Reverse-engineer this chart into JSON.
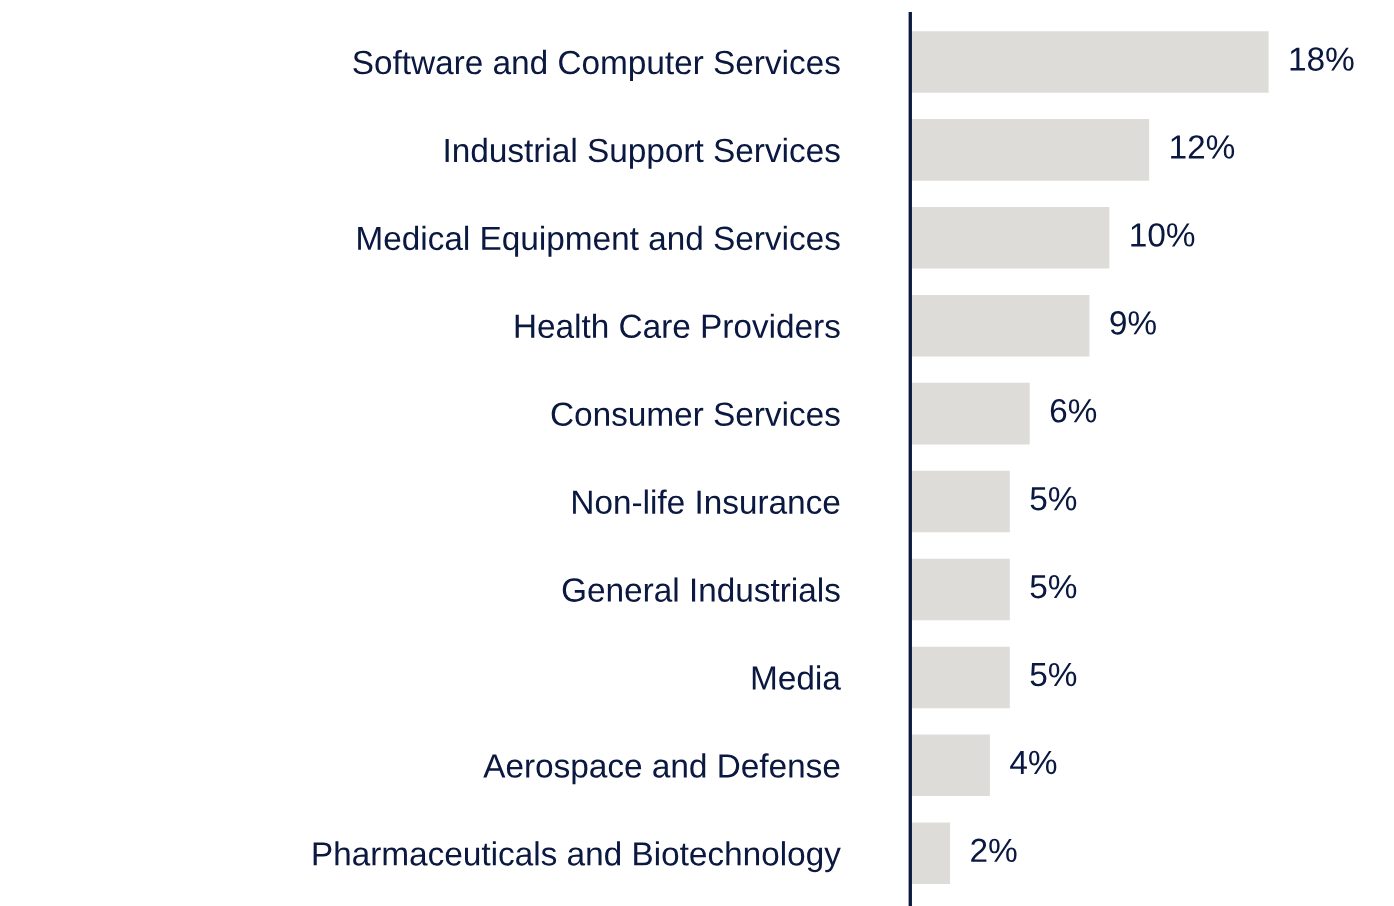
{
  "chart_data": {
    "type": "bar",
    "orientation": "horizontal",
    "categories": [
      "Software and Computer Services",
      "Industrial Support Services",
      "Medical Equipment and Services",
      "Health Care Providers",
      "Consumer Services",
      "Non-life Insurance",
      "General Industrials",
      "Media",
      "Aerospace and Defense",
      "Pharmaceuticals and Biotechnology"
    ],
    "values": [
      18,
      12,
      10,
      9,
      6,
      5,
      5,
      5,
      4,
      2
    ],
    "value_labels": [
      "18%",
      "12%",
      "10%",
      "9%",
      "6%",
      "5%",
      "5%",
      "5%",
      "4%",
      "2%"
    ],
    "color": "#dedcd8",
    "tick_labels": "y",
    "grid": false,
    "legend": false
  }
}
